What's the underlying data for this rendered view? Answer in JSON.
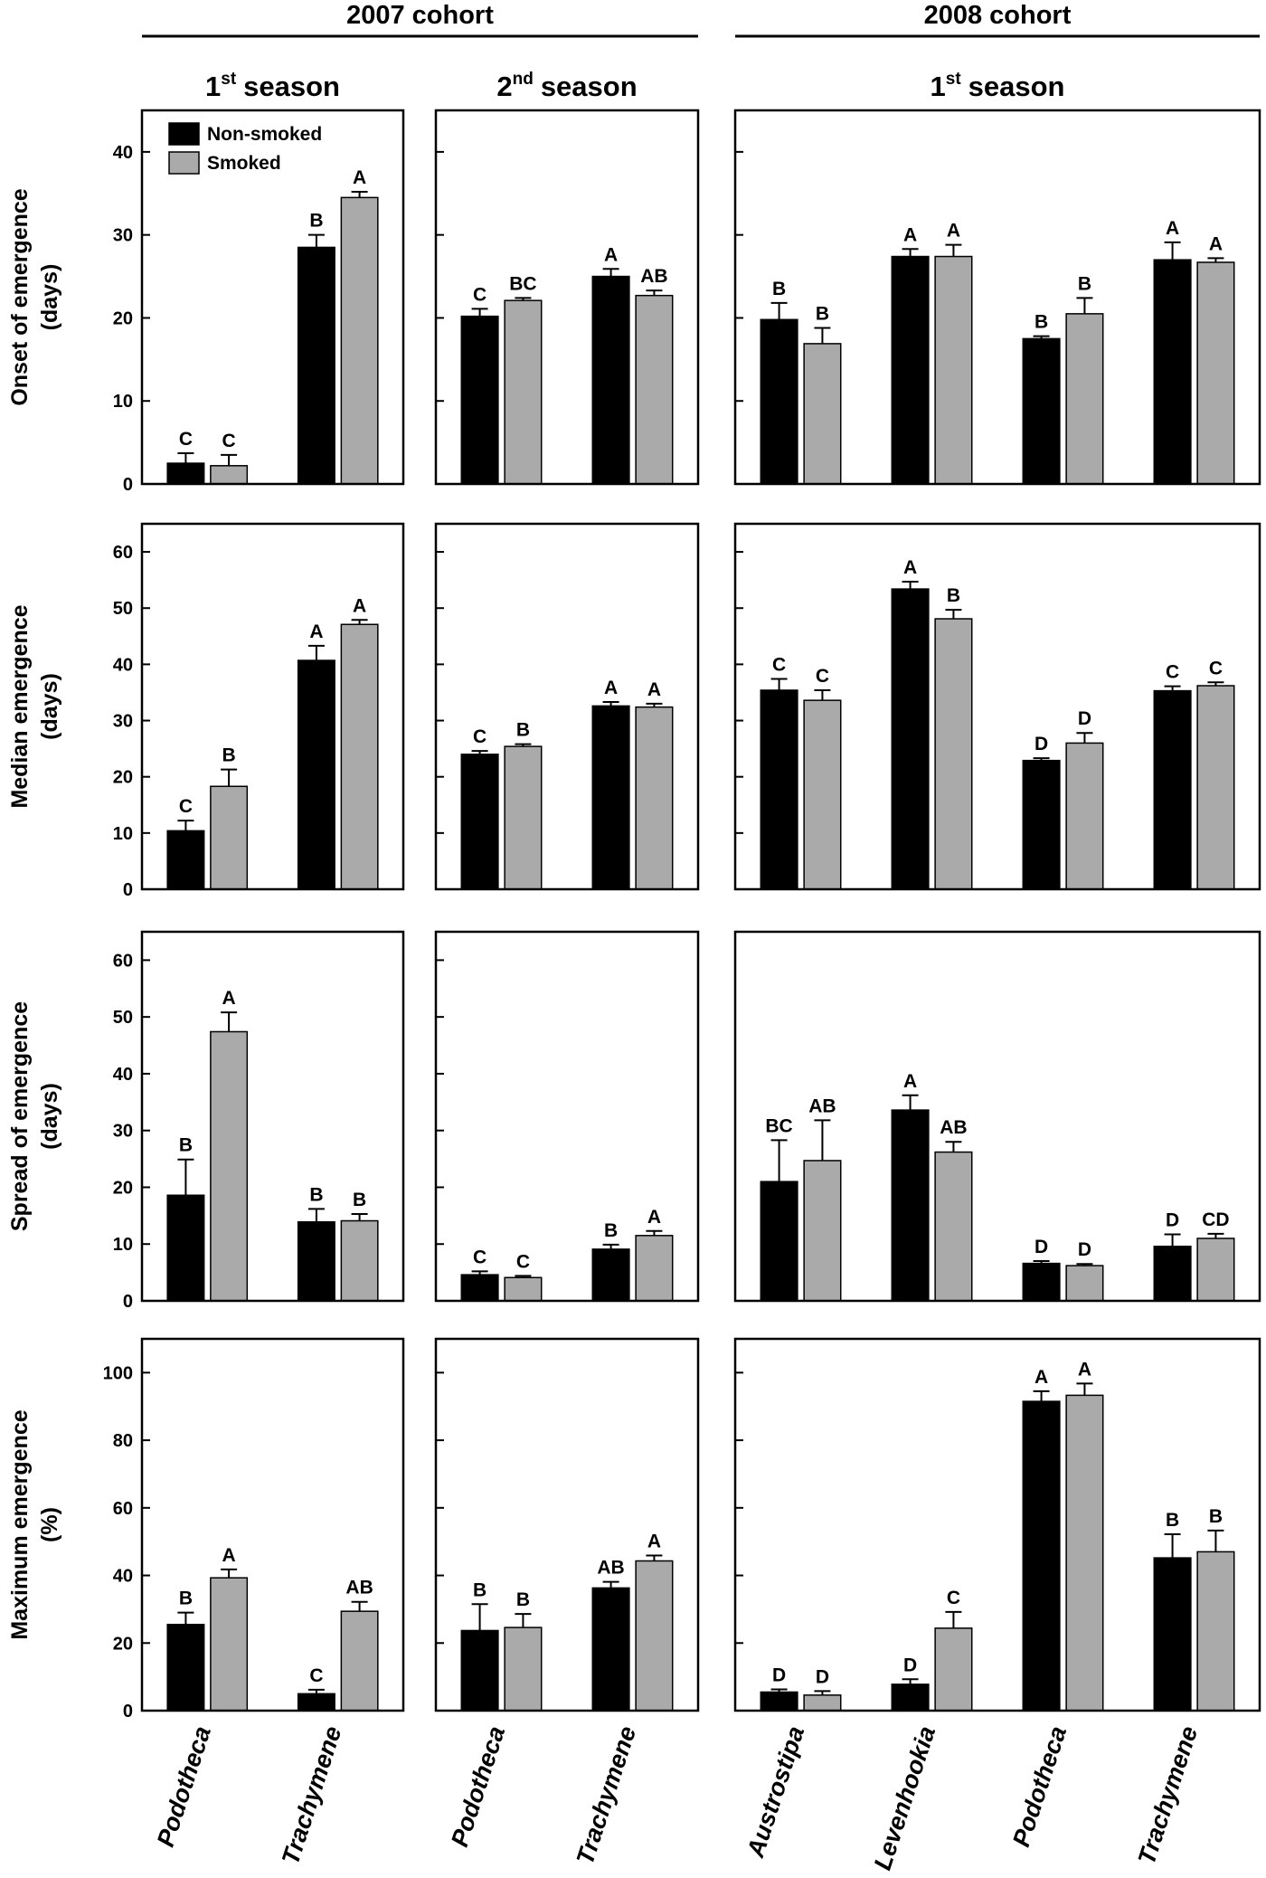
{
  "headers": {
    "cohorts": [
      "2007 cohort",
      "2008 cohort"
    ],
    "seasons": [
      {
        "ordinal": "1",
        "suffix": "st",
        "label": "season"
      },
      {
        "ordinal": "2",
        "suffix": "nd",
        "label": "season"
      },
      {
        "ordinal": "1",
        "suffix": "st",
        "label": "season"
      }
    ]
  },
  "chart_data": [
    {
      "type": "bar",
      "ylabel": [
        "Onset of emergence",
        "(days)"
      ],
      "legend": "upper left",
      "ylim": [
        0,
        45
      ],
      "yticks": [
        0,
        10,
        20,
        30,
        40
      ],
      "tick_labels": true,
      "categories": [
        null,
        null
      ],
      "series": [
        {
          "name": "Non-smoked",
          "color": "#000000",
          "values": [
            2.5,
            28.5
          ],
          "errors": [
            1.2,
            1.5
          ],
          "letters": [
            "C",
            "B"
          ]
        },
        {
          "name": "Smoked",
          "color": "#aaaaaa",
          "values": [
            2.2,
            34.5
          ],
          "errors": [
            1.3,
            0.7
          ],
          "letters": [
            "C",
            "A"
          ]
        }
      ]
    },
    {
      "type": "bar",
      "ylim": [
        0,
        45
      ],
      "yticks": [
        0,
        10,
        20,
        30,
        40
      ],
      "tick_labels": false,
      "categories": [
        null,
        null
      ],
      "series": [
        {
          "color": "#000000",
          "values": [
            20.2,
            25.0
          ],
          "errors": [
            0.9,
            0.9
          ],
          "letters": [
            "C",
            "A"
          ]
        },
        {
          "color": "#aaaaaa",
          "values": [
            22.1,
            22.7
          ],
          "errors": [
            0.3,
            0.6
          ],
          "letters": [
            "BC",
            "AB"
          ]
        }
      ]
    },
    {
      "type": "bar",
      "ylim": [
        0,
        45
      ],
      "yticks": [
        0,
        10,
        20,
        30,
        40
      ],
      "tick_labels": false,
      "categories": [
        null,
        null,
        null,
        null
      ],
      "series": [
        {
          "color": "#000000",
          "values": [
            19.8,
            27.4,
            17.5,
            27.0
          ],
          "errors": [
            2.0,
            0.9,
            0.3,
            2.1
          ],
          "letters": [
            "B",
            "A",
            "B",
            "A"
          ]
        },
        {
          "color": "#aaaaaa",
          "values": [
            16.9,
            27.4,
            20.5,
            26.7
          ],
          "errors": [
            1.9,
            1.4,
            1.9,
            0.5
          ],
          "letters": [
            "B",
            "A",
            "B",
            "A"
          ]
        }
      ]
    },
    {
      "type": "bar",
      "ylabel": [
        "Median emergence",
        "(days)"
      ],
      "ylim": [
        0,
        65
      ],
      "yticks": [
        0,
        10,
        20,
        30,
        40,
        50,
        60
      ],
      "tick_labels": true,
      "categories": [
        null,
        null
      ],
      "series": [
        {
          "color": "#000000",
          "values": [
            10.4,
            40.7
          ],
          "errors": [
            1.8,
            2.6
          ],
          "letters": [
            "C",
            "A"
          ]
        },
        {
          "color": "#aaaaaa",
          "values": [
            18.3,
            47.1
          ],
          "errors": [
            3.0,
            0.8
          ],
          "letters": [
            "B",
            "A"
          ]
        }
      ]
    },
    {
      "type": "bar",
      "ylim": [
        0,
        65
      ],
      "yticks": [
        0,
        10,
        20,
        30,
        40,
        50,
        60
      ],
      "tick_labels": false,
      "categories": [
        null,
        null
      ],
      "series": [
        {
          "color": "#000000",
          "values": [
            24.0,
            32.6
          ],
          "errors": [
            0.6,
            0.7
          ],
          "letters": [
            "C",
            "A"
          ]
        },
        {
          "color": "#aaaaaa",
          "values": [
            25.4,
            32.4
          ],
          "errors": [
            0.4,
            0.6
          ],
          "letters": [
            "B",
            "A"
          ]
        }
      ]
    },
    {
      "type": "bar",
      "ylim": [
        0,
        65
      ],
      "yticks": [
        0,
        10,
        20,
        30,
        40,
        50,
        60
      ],
      "tick_labels": false,
      "categories": [
        null,
        null,
        null,
        null
      ],
      "series": [
        {
          "color": "#000000",
          "values": [
            35.4,
            53.4,
            22.9,
            35.3
          ],
          "errors": [
            2.0,
            1.3,
            0.4,
            0.8
          ],
          "letters": [
            "C",
            "A",
            "D",
            "C"
          ]
        },
        {
          "color": "#aaaaaa",
          "values": [
            33.6,
            48.1,
            26.0,
            36.2
          ],
          "errors": [
            1.8,
            1.6,
            1.8,
            0.6
          ],
          "letters": [
            "C",
            "B",
            "D",
            "C"
          ]
        }
      ]
    },
    {
      "type": "bar",
      "ylabel": [
        "Spread of emergence",
        "(days)"
      ],
      "ylim": [
        0,
        65
      ],
      "yticks": [
        0,
        10,
        20,
        30,
        40,
        50,
        60
      ],
      "tick_labels": true,
      "categories": [
        null,
        null
      ],
      "series": [
        {
          "color": "#000000",
          "values": [
            18.6,
            13.9
          ],
          "errors": [
            6.3,
            2.3
          ],
          "letters": [
            "B",
            "B"
          ]
        },
        {
          "color": "#aaaaaa",
          "values": [
            47.4,
            14.1
          ],
          "errors": [
            3.4,
            1.2
          ],
          "letters": [
            "A",
            "B"
          ]
        }
      ]
    },
    {
      "type": "bar",
      "ylim": [
        0,
        65
      ],
      "yticks": [
        0,
        10,
        20,
        30,
        40,
        50,
        60
      ],
      "tick_labels": false,
      "categories": [
        null,
        null
      ],
      "series": [
        {
          "color": "#000000",
          "values": [
            4.6,
            9.1
          ],
          "errors": [
            0.6,
            0.8
          ],
          "letters": [
            "C",
            "B"
          ]
        },
        {
          "color": "#aaaaaa",
          "values": [
            4.1,
            11.5
          ],
          "errors": [
            0.3,
            0.8
          ],
          "letters": [
            "C",
            "A"
          ]
        }
      ]
    },
    {
      "type": "bar",
      "ylim": [
        0,
        65
      ],
      "categories": [
        null,
        null,
        null,
        null
      ],
      "series": [
        {
          "color": "#000000",
          "values": [
            21.0,
            33.6,
            6.6,
            9.6
          ],
          "errors": [
            7.3,
            2.6,
            0.4,
            2.1
          ],
          "letters": [
            "BC",
            "A",
            "D",
            "D"
          ]
        },
        {
          "color": "#aaaaaa",
          "values": [
            24.7,
            26.2,
            6.2,
            11.0
          ],
          "errors": [
            7.1,
            1.8,
            0.3,
            0.8
          ],
          "letters": [
            "AB",
            "AB",
            "D",
            "CD"
          ]
        }
      ]
    },
    {
      "type": "bar",
      "ylabel": [
        "Maximum emergence",
        "(%)"
      ],
      "ylim": [
        0,
        110
      ],
      "yticks": [
        0,
        20,
        40,
        60,
        80,
        100
      ],
      "tick_labels": true,
      "categories": [
        "Podotheca",
        "Trachymene"
      ],
      "series": [
        {
          "color": "#000000",
          "values": [
            25.5,
            5.0
          ],
          "errors": [
            3.5,
            1.2
          ],
          "letters": [
            "B",
            "C"
          ]
        },
        {
          "color": "#aaaaaa",
          "values": [
            39.3,
            29.4
          ],
          "errors": [
            2.5,
            2.8
          ],
          "letters": [
            "A",
            "AB"
          ]
        }
      ]
    },
    {
      "type": "bar",
      "ylim": [
        0,
        110
      ],
      "yticks": [
        0,
        20,
        40,
        60,
        80,
        100
      ],
      "tick_labels": false,
      "categories": [
        "Podotheca",
        "Trachymene"
      ],
      "series": [
        {
          "color": "#000000",
          "values": [
            23.7,
            36.3
          ],
          "errors": [
            7.8,
            1.8
          ],
          "letters": [
            "B",
            "AB"
          ]
        },
        {
          "color": "#aaaaaa",
          "values": [
            24.6,
            44.3
          ],
          "errors": [
            4.0,
            1.6
          ],
          "letters": [
            "B",
            "A"
          ]
        }
      ]
    },
    {
      "type": "bar",
      "ylim": [
        0,
        110
      ],
      "yticks": [
        0,
        20,
        40,
        60,
        80,
        100
      ],
      "tick_labels": false,
      "categories": [
        "Austrostipa",
        "Levenhookia",
        "Podotheca",
        "Trachymene"
      ],
      "series": [
        {
          "color": "#000000",
          "values": [
            5.5,
            7.8,
            91.5,
            45.2
          ],
          "errors": [
            0.8,
            1.5,
            3.0,
            7.0
          ],
          "letters": [
            "D",
            "D",
            "A",
            "B"
          ]
        },
        {
          "color": "#aaaaaa",
          "values": [
            4.6,
            24.4,
            93.3,
            47.0
          ],
          "errors": [
            1.2,
            4.8,
            3.5,
            6.3
          ],
          "letters": [
            "D",
            "C",
            "A",
            "B"
          ]
        }
      ]
    }
  ]
}
